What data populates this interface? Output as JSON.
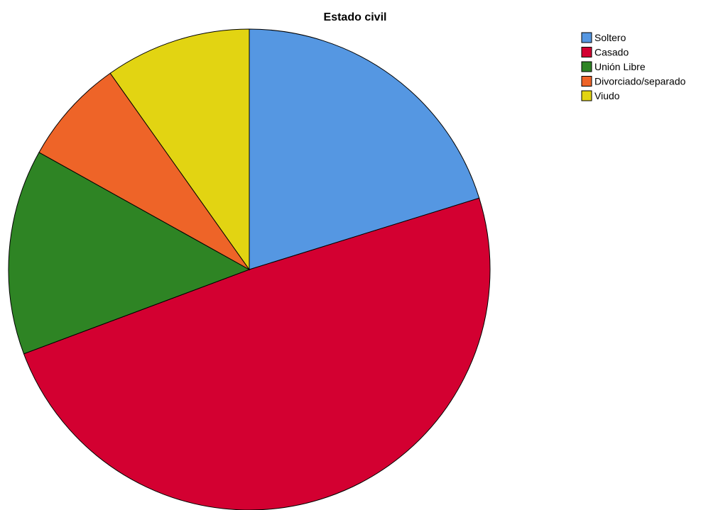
{
  "chart_data": {
    "type": "pie",
    "title": "Estado civil",
    "categories": [
      "Soltero",
      "Casado",
      "Unión Libre",
      "Divorciado/separado",
      "Viudo"
    ],
    "values": [
      20.2,
      49.1,
      13.8,
      7.1,
      9.8
    ],
    "colors": [
      "#5597E2",
      "#D30031",
      "#2E8424",
      "#EE6428",
      "#E2D412"
    ],
    "start_angle_deg": 0,
    "direction": "clockwise",
    "legend_position": "top-right"
  }
}
